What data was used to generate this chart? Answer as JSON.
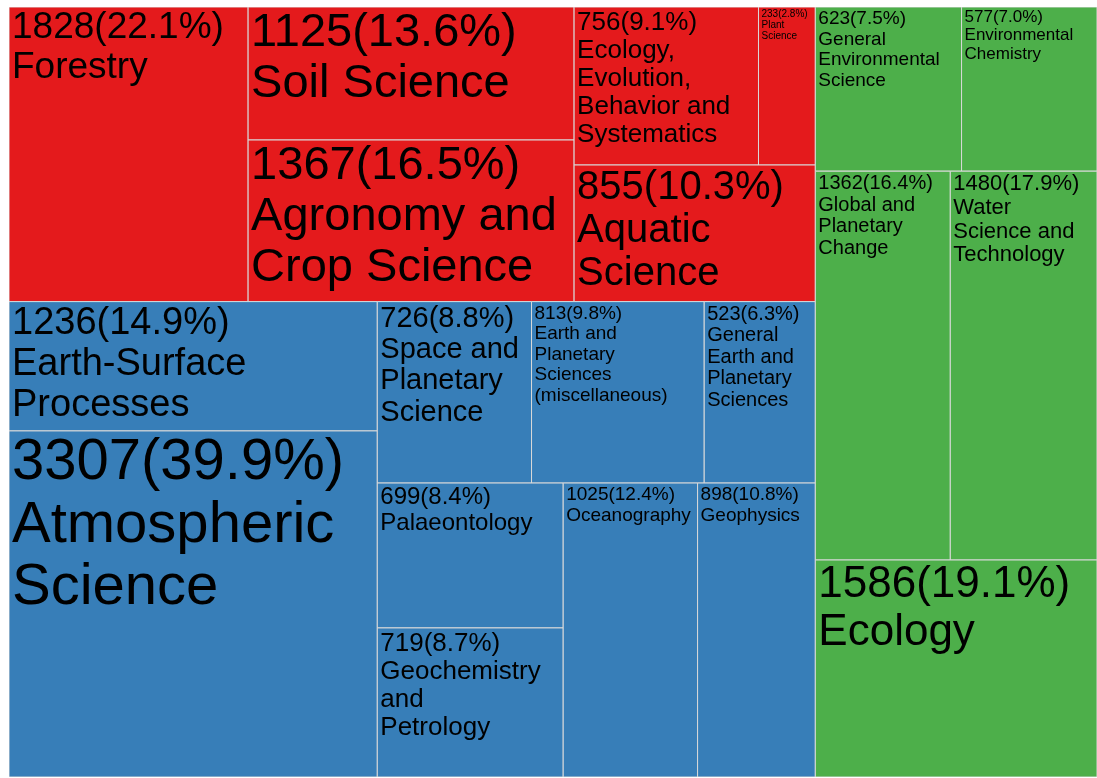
{
  "chart_data": {
    "type": "other",
    "categories": [
      "Forestry",
      "Soil Science",
      "Agronomy and Crop Science",
      "Ecology, Evolution, Behavior and Systematics",
      "Plant Science",
      "Aquatic Science",
      "Earth-Surface Processes",
      "Atmospheric Science",
      "Space and Planetary Science",
      "Earth and Planetary Sciences (miscellaneous)",
      "General Earth and Planetary Sciences",
      "Palaeontology",
      "Geochemistry and Petrology",
      "Oceanography",
      "Geophysics",
      "General Environmental Science",
      "Environmental Chemistry",
      "Global and Planetary Change",
      "Water Science and Technology",
      "Ecology"
    ],
    "values": [
      1828,
      1125,
      1367,
      756,
      233,
      855,
      1236,
      3307,
      726,
      813,
      523,
      699,
      719,
      1025,
      898,
      623,
      577,
      1362,
      1480,
      1586
    ],
    "value_labels": [
      "1828(22.1%)",
      "1125(13.6%)",
      "1367(16.5%)",
      "756(9.1%)",
      "233(2.8%)",
      "855(10.3%)",
      "1236(14.9%)",
      "3307(39.9%)",
      "726(8.8%)",
      "813(9.8%)",
      "523(6.3%)",
      "699(8.4%)",
      "719(8.7%)",
      "1025(12.4%)",
      "898(10.8%)",
      "623(7.5%)",
      "577(7.0%)",
      "1362(16.4%)",
      "1480(17.9%)",
      "1586(19.1%)"
    ],
    "colors": [
      "#e41a1c",
      "#e41a1c",
      "#e41a1c",
      "#e41a1c",
      "#e41a1c",
      "#e41a1c",
      "#377eb8",
      "#377eb8",
      "#377eb8",
      "#377eb8",
      "#377eb8",
      "#377eb8",
      "#377eb8",
      "#377eb8",
      "#377eb8",
      "#4daf4a",
      "#4daf4a",
      "#4daf4a",
      "#4daf4a",
      "#4daf4a"
    ]
  }
}
